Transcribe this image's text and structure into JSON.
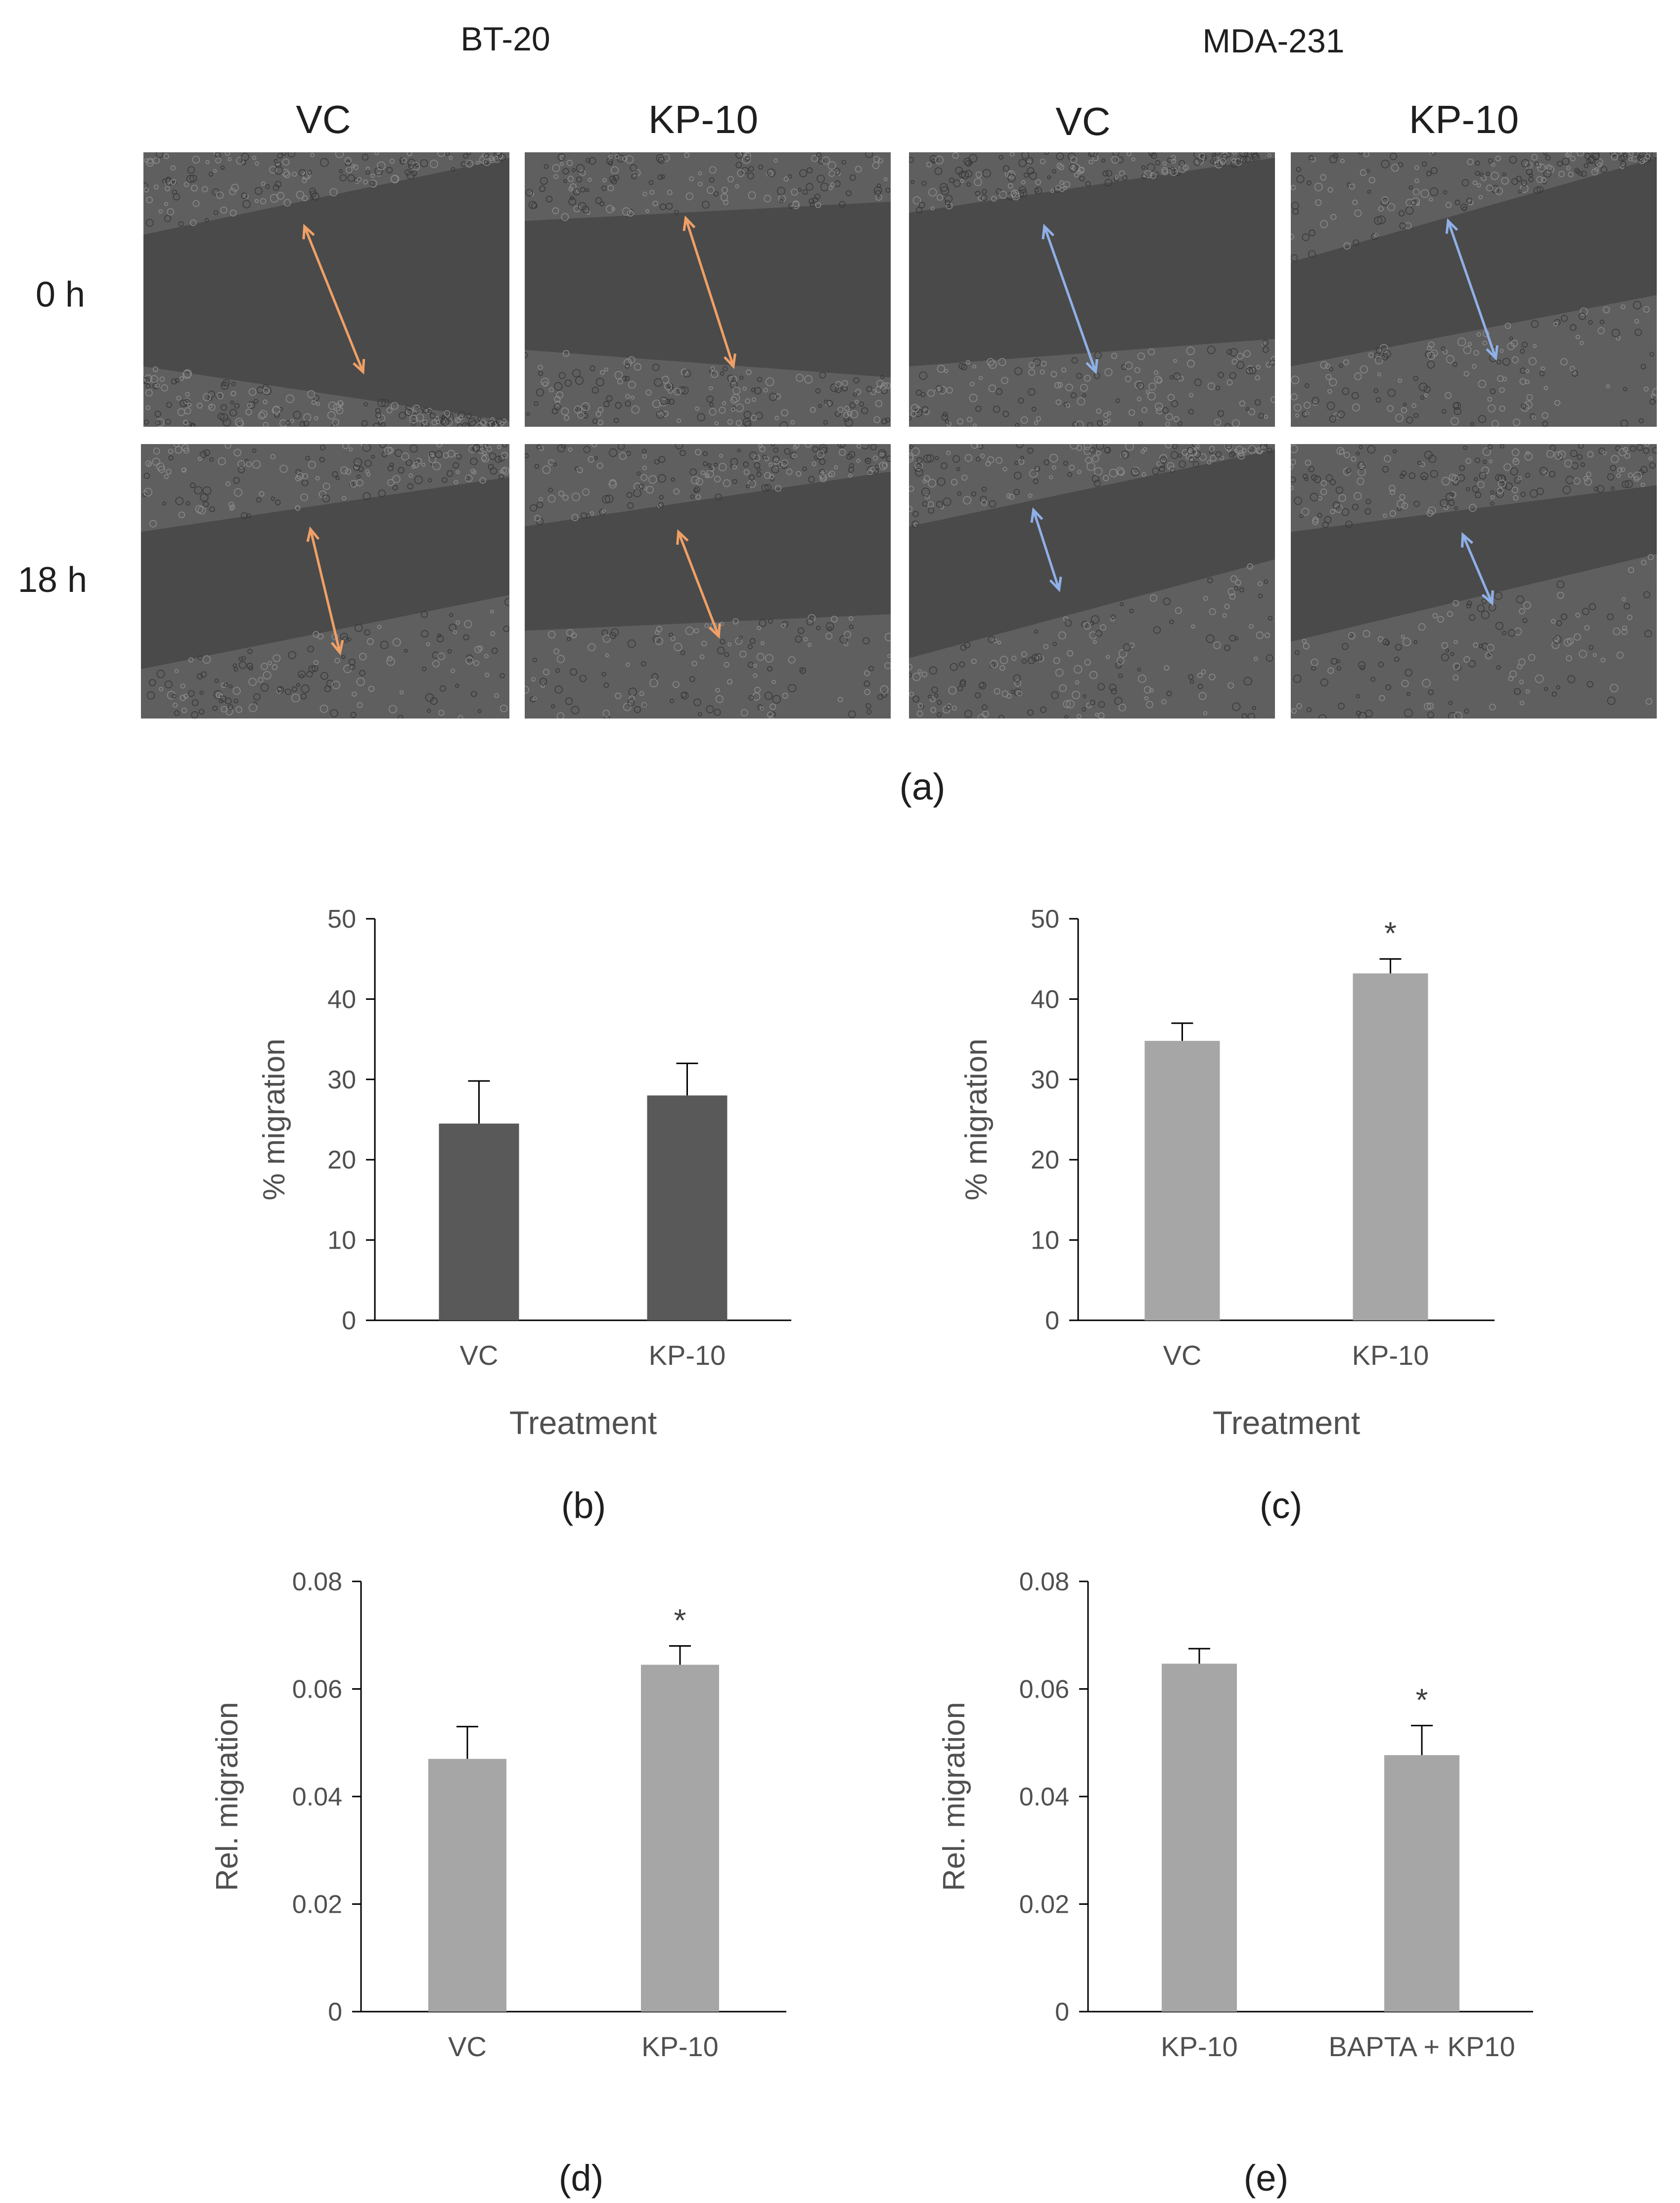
{
  "panel_a": {
    "group_titles": [
      "BT-20",
      "MDA-231"
    ],
    "column_labels": [
      "VC",
      "KP-10",
      "VC",
      "KP-10"
    ],
    "row_labels": [
      "0 h",
      "18 h"
    ],
    "panel_label": "(a)",
    "images": [
      {
        "cell_line": "BT-20",
        "treatment": "VC",
        "time": "0 h",
        "arrow_color": "#f0a066",
        "gap": 0.5
      },
      {
        "cell_line": "BT-20",
        "treatment": "KP-10",
        "time": "0 h",
        "arrow_color": "#f0a066",
        "gap": 0.55
      },
      {
        "cell_line": "MDA-231",
        "treatment": "VC",
        "time": "0 h",
        "arrow_color": "#8fb0e8",
        "gap": 0.55
      },
      {
        "cell_line": "MDA-231",
        "treatment": "KP-10",
        "time": "0 h",
        "arrow_color": "#8fb0e8",
        "gap": 0.5
      },
      {
        "cell_line": "BT-20",
        "treatment": "VC",
        "time": "18 h",
        "arrow_color": "#f0a066",
        "gap": 0.45
      },
      {
        "cell_line": "BT-20",
        "treatment": "KP-10",
        "time": "18 h",
        "arrow_color": "#f0a066",
        "gap": 0.45
      },
      {
        "cell_line": "MDA-231",
        "treatment": "VC",
        "time": "18 h",
        "arrow_color": "#8fb0e8",
        "gap": 0.35
      },
      {
        "cell_line": "MDA-231",
        "treatment": "KP-10",
        "time": "18 h",
        "arrow_color": "#8fb0e8",
        "gap": 0.22
      }
    ]
  },
  "chart_data": [
    {
      "id": "b",
      "type": "bar",
      "panel_label": "(b)",
      "categories": [
        "VC",
        "KP-10"
      ],
      "values": [
        24.5,
        28
      ],
      "errors": [
        5.3,
        4
      ],
      "annotations": [
        "",
        ""
      ],
      "ylabel": "% migration",
      "xlabel": "Treatment",
      "ylim": [
        0,
        50
      ],
      "yticks": [
        "0",
        "10",
        "20",
        "30",
        "40",
        "50"
      ],
      "bar_color": "#595959"
    },
    {
      "id": "c",
      "type": "bar",
      "panel_label": "(c)",
      "categories": [
        "VC",
        "KP-10"
      ],
      "values": [
        34.8,
        43.2
      ],
      "errors": [
        2.2,
        1.8
      ],
      "annotations": [
        "",
        "*"
      ],
      "ylabel": "% migration",
      "xlabel": "Treatment",
      "ylim": [
        0,
        50
      ],
      "yticks": [
        "0",
        "10",
        "20",
        "30",
        "40",
        "50"
      ],
      "bar_color": "#a6a6a6"
    },
    {
      "id": "d",
      "type": "bar",
      "panel_label": "(d)",
      "categories": [
        "VC",
        "KP-10"
      ],
      "values": [
        0.047,
        0.0645
      ],
      "errors": [
        0.006,
        0.0035
      ],
      "annotations": [
        "",
        "*"
      ],
      "ylabel": "Rel. migration",
      "xlabel": "",
      "ylim": [
        0,
        0.08
      ],
      "yticks": [
        "0",
        "0.02",
        "0.04",
        "0.06",
        "0.08"
      ],
      "bar_color": "#a6a6a6"
    },
    {
      "id": "e",
      "type": "bar",
      "panel_label": "(e)",
      "categories": [
        "KP-10",
        "BAPTA + KP10"
      ],
      "values": [
        0.0647,
        0.0477
      ],
      "errors": [
        0.0028,
        0.0055
      ],
      "annotations": [
        "",
        "*"
      ],
      "ylabel": "Rel. migration",
      "xlabel": "",
      "ylim": [
        0,
        0.08
      ],
      "yticks": [
        "0",
        "0.02",
        "0.04",
        "0.06",
        "0.08"
      ],
      "bar_color": "#a6a6a6"
    }
  ]
}
